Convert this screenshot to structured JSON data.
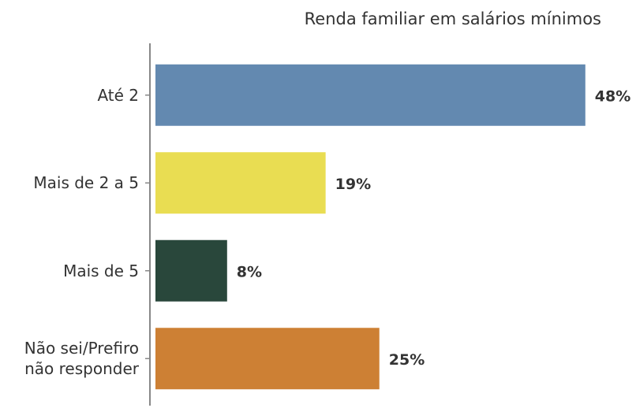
{
  "chart_data": {
    "type": "bar",
    "orientation": "horizontal",
    "title": "Renda familiar em salários mínimos",
    "categories": [
      "Até 2",
      "Mais de 2 a 5",
      "Mais de 5",
      "Não sei/Prefiro não responder"
    ],
    "values": [
      48,
      19,
      8,
      25
    ],
    "value_labels": [
      "48%",
      "19%",
      "8%",
      "25%"
    ],
    "colors": [
      "#6389b0",
      "#e9dd52",
      "#29473b",
      "#cd8034"
    ]
  }
}
